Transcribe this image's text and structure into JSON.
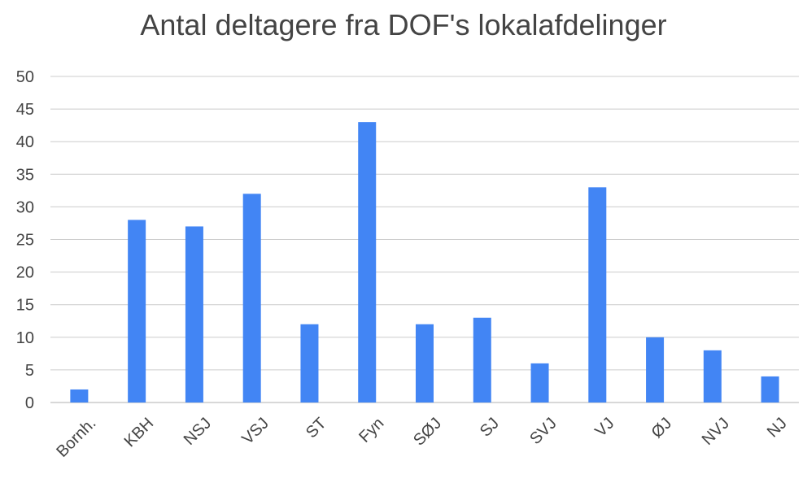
{
  "chart_data": {
    "type": "bar",
    "title": "Antal deltagere fra DOF's lokalafdelinger",
    "xlabel": "",
    "ylabel": "",
    "categories": [
      "Bornh.",
      "KBH",
      "NSJ",
      "VSJ",
      "ST",
      "Fyn",
      "SØJ",
      "SJ",
      "SVJ",
      "VJ",
      "ØJ",
      "NVJ",
      "NJ"
    ],
    "values": [
      2,
      28,
      27,
      32,
      12,
      43,
      12,
      13,
      6,
      33,
      10,
      8,
      4
    ],
    "ylim": [
      0,
      50
    ],
    "yticks": [
      "0",
      "5",
      "10",
      "15",
      "20",
      "25",
      "30",
      "35",
      "40",
      "45",
      "50"
    ],
    "grid": true,
    "legend": "none",
    "bar_color": "#4285f4",
    "gridline_color": "#cccccc"
  }
}
